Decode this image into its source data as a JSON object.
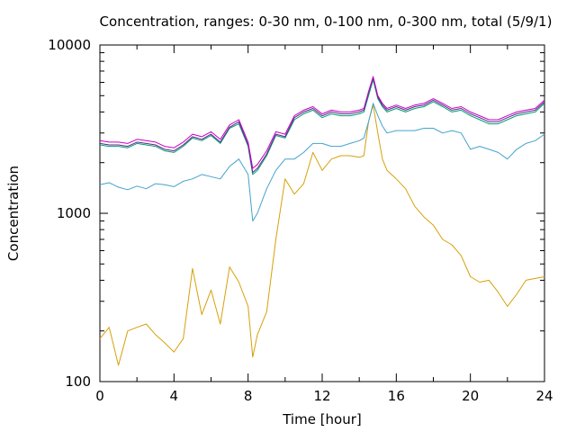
{
  "chart_data": {
    "type": "line",
    "title": "Concentration, ranges: 0-30 nm, 0-100 nm, 0-300 nm, total (5/9/1)",
    "xlabel": "Time [hour]",
    "ylabel": "Concentration",
    "xlim": [
      0,
      24
    ],
    "ylim": [
      100,
      10000
    ],
    "yscale": "log",
    "grid": false,
    "xticks": [
      0,
      4,
      8,
      12,
      16,
      20,
      24
    ],
    "yticks": [
      100,
      1000,
      10000
    ],
    "xtick_labels": [
      "0",
      "4",
      "8",
      "12",
      "16",
      "20",
      "24"
    ],
    "ytick_labels": [
      "100",
      "1000",
      "10000"
    ],
    "x": [
      0,
      0.5,
      1,
      1.5,
      2,
      2.5,
      3,
      3.5,
      4,
      4.5,
      5,
      5.5,
      6,
      6.5,
      7,
      7.5,
      8,
      8.25,
      8.5,
      9,
      9.5,
      10,
      10.5,
      11,
      11.5,
      12,
      12.5,
      13,
      13.5,
      14,
      14.25,
      14.5,
      14.75,
      15,
      15.25,
      15.5,
      16,
      16.5,
      17,
      17.5,
      18,
      18.5,
      19,
      19.5,
      20,
      20.5,
      21,
      21.5,
      22,
      22.5,
      23,
      23.5,
      24
    ],
    "series": [
      {
        "color": "#d7a009",
        "values": [
          180,
          210,
          125,
          200,
          210,
          220,
          190,
          170,
          150,
          180,
          470,
          250,
          350,
          220,
          480,
          390,
          280,
          140,
          190,
          260,
          700,
          1600,
          1300,
          1500,
          2300,
          1800,
          2100,
          2200,
          2200,
          2150,
          2200,
          3500,
          4400,
          3000,
          2100,
          1800,
          1600,
          1400,
          1100,
          950,
          850,
          700,
          650,
          560,
          420,
          390,
          400,
          340,
          280,
          330,
          400,
          410,
          420
        ]
      },
      {
        "color": "#44a3cc",
        "values": [
          1480,
          1520,
          1430,
          1380,
          1450,
          1400,
          1500,
          1480,
          1440,
          1550,
          1600,
          1700,
          1650,
          1600,
          1900,
          2100,
          1700,
          900,
          1000,
          1400,
          1800,
          2100,
          2100,
          2300,
          2600,
          2600,
          2500,
          2500,
          2600,
          2700,
          2800,
          3500,
          4500,
          3800,
          3300,
          3000,
          3100,
          3100,
          3100,
          3200,
          3200,
          3000,
          3100,
          3000,
          2400,
          2500,
          2400,
          2300,
          2100,
          2400,
          2600,
          2700,
          2950
        ]
      },
      {
        "color": "#009e73",
        "values": [
          2550,
          2500,
          2500,
          2450,
          2600,
          2550,
          2500,
          2350,
          2300,
          2500,
          2800,
          2700,
          2900,
          2600,
          3200,
          3400,
          2500,
          1700,
          1800,
          2200,
          2900,
          2800,
          3600,
          3900,
          4100,
          3700,
          3900,
          3800,
          3800,
          3900,
          4000,
          5000,
          6200,
          4800,
          4300,
          4000,
          4200,
          4000,
          4200,
          4300,
          4600,
          4300,
          4000,
          4100,
          3800,
          3600,
          3400,
          3400,
          3600,
          3800,
          3900,
          4000,
          4500
        ]
      },
      {
        "color": "#5b2a86",
        "values": [
          2600,
          2550,
          2550,
          2500,
          2650,
          2600,
          2550,
          2400,
          2350,
          2550,
          2850,
          2750,
          2950,
          2650,
          3250,
          3500,
          2550,
          1750,
          1850,
          2250,
          2950,
          2850,
          3700,
          4000,
          4200,
          3800,
          4000,
          3900,
          3900,
          4000,
          4100,
          5200,
          6400,
          4900,
          4400,
          4100,
          4300,
          4100,
          4300,
          4400,
          4700,
          4400,
          4100,
          4200,
          3900,
          3700,
          3500,
          3500,
          3700,
          3900,
          4000,
          4100,
          4600
        ]
      },
      {
        "color": "#c800c8",
        "values": [
          2700,
          2650,
          2650,
          2600,
          2750,
          2700,
          2650,
          2500,
          2450,
          2650,
          2950,
          2850,
          3050,
          2750,
          3350,
          3600,
          2650,
          1850,
          1950,
          2350,
          3050,
          2950,
          3800,
          4100,
          4300,
          3900,
          4100,
          4000,
          4000,
          4100,
          4200,
          5300,
          6500,
          5000,
          4500,
          4200,
          4400,
          4200,
          4400,
          4500,
          4800,
          4500,
          4200,
          4300,
          4000,
          3800,
          3600,
          3600,
          3800,
          4000,
          4100,
          4200,
          4700
        ]
      }
    ]
  }
}
